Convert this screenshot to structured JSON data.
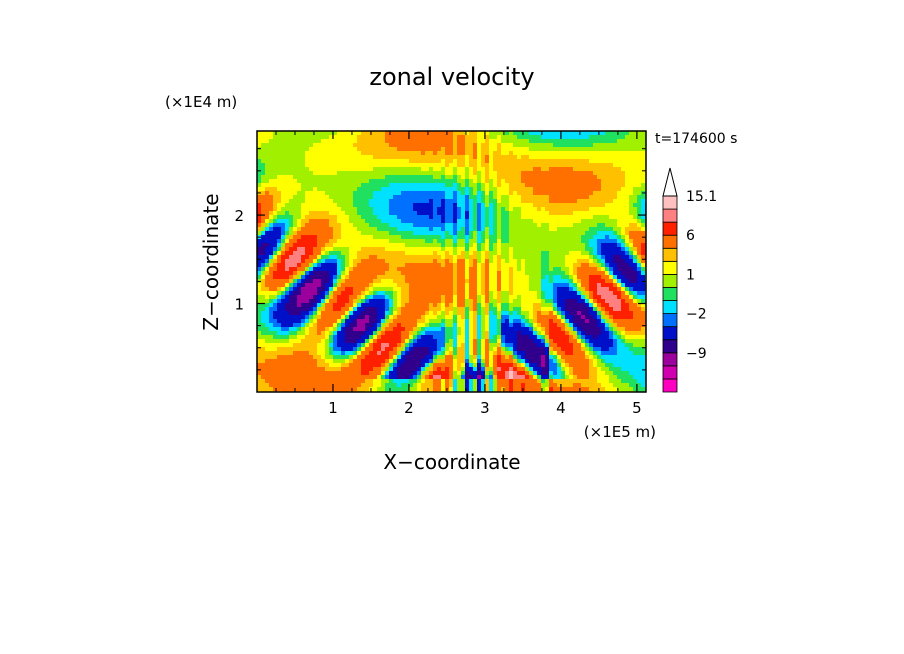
{
  "chart_data": {
    "type": "heatmap",
    "title": "zonal velocity",
    "xlabel": "X−coordinate",
    "ylabel": "Z−coordinate",
    "x_scale_label": "(×1E5 m)",
    "y_scale_label": "(×1E4 m)",
    "time_label": "t=174600 s",
    "xlim": [
      0,
      5.12
    ],
    "ylim": [
      0,
      2.95
    ],
    "x_ticks": [
      "1",
      "2",
      "3",
      "4",
      "5"
    ],
    "x_tick_values": [
      1,
      2,
      3,
      4,
      5
    ],
    "y_ticks": [
      "1",
      "2"
    ],
    "y_tick_values": [
      1,
      2
    ],
    "colorbar": {
      "labels": [
        "15.1",
        "6",
        "1",
        "−2",
        "−9"
      ],
      "label_values": [
        15.1,
        6,
        1,
        -2,
        -9
      ],
      "levels": [
        -15,
        -12,
        -9,
        -6,
        -3,
        -2,
        -1,
        0,
        1,
        2,
        3,
        6,
        9,
        12,
        15.1
      ],
      "colors": [
        "#ff00c0",
        "#d000b0",
        "#9c009c",
        "#30008c",
        "#0010c8",
        "#0070ff",
        "#00e0ff",
        "#20e060",
        "#a0f000",
        "#ffff00",
        "#ffc000",
        "#ff7000",
        "#ff2000",
        "#ff8080",
        "#ffc0c0"
      ],
      "extend": "max"
    }
  }
}
